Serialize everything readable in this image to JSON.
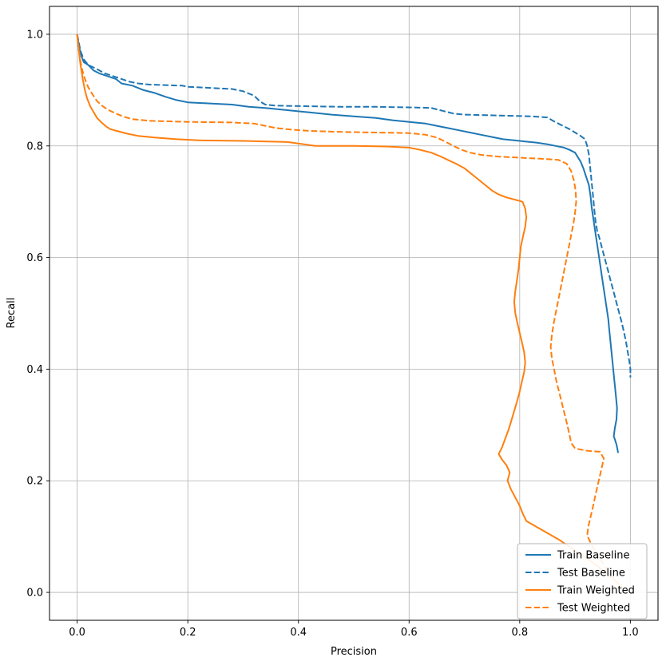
{
  "chart_data": {
    "type": "line",
    "title": "",
    "xlabel": "Precision",
    "ylabel": "Recall",
    "xlim": [
      -0.05,
      1.05
    ],
    "ylim": [
      -0.05,
      1.05
    ],
    "xticks": [
      0.0,
      0.2,
      0.4,
      0.6,
      0.8,
      1.0
    ],
    "yticks": [
      0.0,
      0.2,
      0.4,
      0.6,
      0.8,
      1.0
    ],
    "grid": true,
    "legend_position": "lower right",
    "colors": {
      "baseline": "#1f77b4",
      "weighted": "#ff7f0e"
    },
    "series": [
      {
        "name": "Train Baseline",
        "color": "#1f77b4",
        "dash": "solid",
        "points": [
          [
            0.0,
            1.0
          ],
          [
            0.004,
            0.975
          ],
          [
            0.008,
            0.96
          ],
          [
            0.012,
            0.95
          ],
          [
            0.02,
            0.945
          ],
          [
            0.03,
            0.935
          ],
          [
            0.04,
            0.93
          ],
          [
            0.055,
            0.925
          ],
          [
            0.07,
            0.92
          ],
          [
            0.08,
            0.912
          ],
          [
            0.1,
            0.908
          ],
          [
            0.12,
            0.9
          ],
          [
            0.14,
            0.895
          ],
          [
            0.16,
            0.888
          ],
          [
            0.18,
            0.882
          ],
          [
            0.2,
            0.878
          ],
          [
            0.24,
            0.876
          ],
          [
            0.28,
            0.874
          ],
          [
            0.31,
            0.87
          ],
          [
            0.34,
            0.868
          ],
          [
            0.38,
            0.864
          ],
          [
            0.42,
            0.86
          ],
          [
            0.46,
            0.856
          ],
          [
            0.5,
            0.853
          ],
          [
            0.54,
            0.85
          ],
          [
            0.57,
            0.846
          ],
          [
            0.6,
            0.843
          ],
          [
            0.63,
            0.84
          ],
          [
            0.65,
            0.836
          ],
          [
            0.67,
            0.832
          ],
          [
            0.69,
            0.828
          ],
          [
            0.71,
            0.824
          ],
          [
            0.73,
            0.82
          ],
          [
            0.75,
            0.816
          ],
          [
            0.77,
            0.812
          ],
          [
            0.79,
            0.81
          ],
          [
            0.81,
            0.808
          ],
          [
            0.83,
            0.806
          ],
          [
            0.85,
            0.803
          ],
          [
            0.865,
            0.8
          ],
          [
            0.88,
            0.797
          ],
          [
            0.89,
            0.793
          ],
          [
            0.9,
            0.788
          ],
          [
            0.905,
            0.78
          ],
          [
            0.91,
            0.772
          ],
          [
            0.915,
            0.76
          ],
          [
            0.92,
            0.745
          ],
          [
            0.925,
            0.73
          ],
          [
            0.928,
            0.71
          ],
          [
            0.93,
            0.69
          ],
          [
            0.933,
            0.67
          ],
          [
            0.936,
            0.65
          ],
          [
            0.939,
            0.63
          ],
          [
            0.942,
            0.61
          ],
          [
            0.945,
            0.59
          ],
          [
            0.948,
            0.57
          ],
          [
            0.951,
            0.55
          ],
          [
            0.954,
            0.53
          ],
          [
            0.957,
            0.51
          ],
          [
            0.96,
            0.49
          ],
          [
            0.962,
            0.47
          ],
          [
            0.964,
            0.45
          ],
          [
            0.966,
            0.43
          ],
          [
            0.968,
            0.41
          ],
          [
            0.97,
            0.39
          ],
          [
            0.972,
            0.37
          ],
          [
            0.974,
            0.35
          ],
          [
            0.976,
            0.33
          ],
          [
            0.975,
            0.31
          ],
          [
            0.972,
            0.295
          ],
          [
            0.97,
            0.28
          ],
          [
            0.975,
            0.265
          ],
          [
            0.978,
            0.25
          ]
        ]
      },
      {
        "name": "Test Baseline",
        "color": "#1f77b4",
        "dash": "dashed",
        "points": [
          [
            0.0,
            1.0
          ],
          [
            0.006,
            0.97
          ],
          [
            0.012,
            0.955
          ],
          [
            0.02,
            0.945
          ],
          [
            0.035,
            0.938
          ],
          [
            0.05,
            0.93
          ],
          [
            0.065,
            0.925
          ],
          [
            0.08,
            0.92
          ],
          [
            0.095,
            0.915
          ],
          [
            0.11,
            0.912
          ],
          [
            0.13,
            0.91
          ],
          [
            0.19,
            0.908
          ],
          [
            0.2,
            0.906
          ],
          [
            0.24,
            0.904
          ],
          [
            0.28,
            0.902
          ],
          [
            0.3,
            0.898
          ],
          [
            0.32,
            0.89
          ],
          [
            0.33,
            0.88
          ],
          [
            0.34,
            0.874
          ],
          [
            0.36,
            0.872
          ],
          [
            0.42,
            0.871
          ],
          [
            0.48,
            0.87
          ],
          [
            0.54,
            0.87
          ],
          [
            0.6,
            0.869
          ],
          [
            0.64,
            0.868
          ],
          [
            0.66,
            0.863
          ],
          [
            0.68,
            0.858
          ],
          [
            0.7,
            0.856
          ],
          [
            0.74,
            0.855
          ],
          [
            0.78,
            0.854
          ],
          [
            0.82,
            0.853
          ],
          [
            0.85,
            0.851
          ],
          [
            0.86,
            0.845
          ],
          [
            0.87,
            0.84
          ],
          [
            0.88,
            0.835
          ],
          [
            0.89,
            0.83
          ],
          [
            0.9,
            0.824
          ],
          [
            0.91,
            0.818
          ],
          [
            0.918,
            0.812
          ],
          [
            0.922,
            0.8
          ],
          [
            0.925,
            0.785
          ],
          [
            0.927,
            0.765
          ],
          [
            0.929,
            0.745
          ],
          [
            0.931,
            0.725
          ],
          [
            0.933,
            0.705
          ],
          [
            0.935,
            0.685
          ],
          [
            0.937,
            0.665
          ],
          [
            0.94,
            0.648
          ],
          [
            0.944,
            0.635
          ],
          [
            0.948,
            0.62
          ],
          [
            0.952,
            0.605
          ],
          [
            0.956,
            0.59
          ],
          [
            0.96,
            0.575
          ],
          [
            0.964,
            0.56
          ],
          [
            0.968,
            0.545
          ],
          [
            0.972,
            0.53
          ],
          [
            0.976,
            0.515
          ],
          [
            0.98,
            0.5
          ],
          [
            0.984,
            0.485
          ],
          [
            0.988,
            0.468
          ],
          [
            0.992,
            0.45
          ],
          [
            0.995,
            0.432
          ],
          [
            0.998,
            0.415
          ],
          [
            1.0,
            0.4
          ],
          [
            1.0,
            0.385
          ]
        ]
      },
      {
        "name": "Train Weighted",
        "color": "#ff7f0e",
        "dash": "solid",
        "points": [
          [
            0.0,
            1.0
          ],
          [
            0.003,
            0.97
          ],
          [
            0.006,
            0.945
          ],
          [
            0.01,
            0.92
          ],
          [
            0.014,
            0.9
          ],
          [
            0.018,
            0.885
          ],
          [
            0.024,
            0.87
          ],
          [
            0.03,
            0.86
          ],
          [
            0.036,
            0.85
          ],
          [
            0.044,
            0.842
          ],
          [
            0.052,
            0.835
          ],
          [
            0.06,
            0.83
          ],
          [
            0.075,
            0.826
          ],
          [
            0.09,
            0.822
          ],
          [
            0.11,
            0.818
          ],
          [
            0.14,
            0.815
          ],
          [
            0.18,
            0.812
          ],
          [
            0.22,
            0.81
          ],
          [
            0.3,
            0.809
          ],
          [
            0.38,
            0.807
          ],
          [
            0.41,
            0.803
          ],
          [
            0.43,
            0.8
          ],
          [
            0.5,
            0.8
          ],
          [
            0.56,
            0.799
          ],
          [
            0.6,
            0.797
          ],
          [
            0.62,
            0.793
          ],
          [
            0.64,
            0.788
          ],
          [
            0.655,
            0.782
          ],
          [
            0.67,
            0.775
          ],
          [
            0.685,
            0.768
          ],
          [
            0.7,
            0.76
          ],
          [
            0.71,
            0.752
          ],
          [
            0.72,
            0.744
          ],
          [
            0.73,
            0.736
          ],
          [
            0.74,
            0.728
          ],
          [
            0.75,
            0.72
          ],
          [
            0.76,
            0.714
          ],
          [
            0.775,
            0.708
          ],
          [
            0.79,
            0.704
          ],
          [
            0.805,
            0.7
          ],
          [
            0.81,
            0.688
          ],
          [
            0.812,
            0.672
          ],
          [
            0.81,
            0.655
          ],
          [
            0.806,
            0.638
          ],
          [
            0.802,
            0.62
          ],
          [
            0.8,
            0.6
          ],
          [
            0.798,
            0.58
          ],
          [
            0.795,
            0.56
          ],
          [
            0.792,
            0.54
          ],
          [
            0.79,
            0.52
          ],
          [
            0.792,
            0.5
          ],
          [
            0.796,
            0.482
          ],
          [
            0.8,
            0.465
          ],
          [
            0.804,
            0.448
          ],
          [
            0.808,
            0.43
          ],
          [
            0.81,
            0.412
          ],
          [
            0.808,
            0.395
          ],
          [
            0.804,
            0.378
          ],
          [
            0.8,
            0.36
          ],
          [
            0.795,
            0.342
          ],
          [
            0.79,
            0.325
          ],
          [
            0.785,
            0.308
          ],
          [
            0.78,
            0.292
          ],
          [
            0.774,
            0.276
          ],
          [
            0.768,
            0.26
          ],
          [
            0.762,
            0.248
          ],
          [
            0.768,
            0.238
          ],
          [
            0.776,
            0.228
          ],
          [
            0.782,
            0.215
          ],
          [
            0.778,
            0.2
          ],
          [
            0.784,
            0.185
          ],
          [
            0.792,
            0.17
          ],
          [
            0.8,
            0.155
          ],
          [
            0.806,
            0.14
          ],
          [
            0.812,
            0.128
          ],
          [
            0.84,
            0.112
          ],
          [
            0.87,
            0.095
          ],
          [
            0.9,
            0.075
          ],
          [
            0.93,
            0.055
          ],
          [
            0.96,
            0.032
          ],
          [
            0.985,
            0.01
          ]
        ]
      },
      {
        "name": "Test Weighted",
        "color": "#ff7f0e",
        "dash": "dashed",
        "points": [
          [
            0.0,
            1.0
          ],
          [
            0.004,
            0.965
          ],
          [
            0.008,
            0.94
          ],
          [
            0.014,
            0.92
          ],
          [
            0.02,
            0.905
          ],
          [
            0.028,
            0.892
          ],
          [
            0.036,
            0.88
          ],
          [
            0.045,
            0.872
          ],
          [
            0.055,
            0.865
          ],
          [
            0.07,
            0.858
          ],
          [
            0.085,
            0.852
          ],
          [
            0.1,
            0.848
          ],
          [
            0.13,
            0.845
          ],
          [
            0.2,
            0.843
          ],
          [
            0.28,
            0.842
          ],
          [
            0.32,
            0.84
          ],
          [
            0.34,
            0.836
          ],
          [
            0.36,
            0.832
          ],
          [
            0.39,
            0.829
          ],
          [
            0.42,
            0.827
          ],
          [
            0.48,
            0.825
          ],
          [
            0.54,
            0.824
          ],
          [
            0.6,
            0.823
          ],
          [
            0.63,
            0.82
          ],
          [
            0.65,
            0.815
          ],
          [
            0.665,
            0.808
          ],
          [
            0.68,
            0.8
          ],
          [
            0.695,
            0.793
          ],
          [
            0.71,
            0.788
          ],
          [
            0.73,
            0.784
          ],
          [
            0.76,
            0.781
          ],
          [
            0.8,
            0.779
          ],
          [
            0.84,
            0.777
          ],
          [
            0.87,
            0.775
          ],
          [
            0.885,
            0.768
          ],
          [
            0.893,
            0.755
          ],
          [
            0.898,
            0.738
          ],
          [
            0.901,
            0.72
          ],
          [
            0.902,
            0.7
          ],
          [
            0.9,
            0.68
          ],
          [
            0.897,
            0.66
          ],
          [
            0.893,
            0.64
          ],
          [
            0.889,
            0.62
          ],
          [
            0.885,
            0.6
          ],
          [
            0.881,
            0.58
          ],
          [
            0.877,
            0.56
          ],
          [
            0.873,
            0.54
          ],
          [
            0.869,
            0.52
          ],
          [
            0.865,
            0.5
          ],
          [
            0.861,
            0.48
          ],
          [
            0.858,
            0.46
          ],
          [
            0.856,
            0.44
          ],
          [
            0.858,
            0.42
          ],
          [
            0.862,
            0.4
          ],
          [
            0.866,
            0.38
          ],
          [
            0.871,
            0.36
          ],
          [
            0.876,
            0.34
          ],
          [
            0.881,
            0.32
          ],
          [
            0.886,
            0.3
          ],
          [
            0.89,
            0.282
          ],
          [
            0.893,
            0.268
          ],
          [
            0.9,
            0.258
          ],
          [
            0.92,
            0.254
          ],
          [
            0.945,
            0.252
          ],
          [
            0.952,
            0.24
          ],
          [
            0.948,
            0.222
          ],
          [
            0.944,
            0.205
          ],
          [
            0.94,
            0.188
          ],
          [
            0.936,
            0.17
          ],
          [
            0.932,
            0.152
          ],
          [
            0.928,
            0.135
          ],
          [
            0.924,
            0.118
          ],
          [
            0.922,
            0.102
          ],
          [
            0.93,
            0.085
          ],
          [
            0.942,
            0.065
          ],
          [
            0.955,
            0.045
          ],
          [
            0.968,
            0.025
          ]
        ]
      }
    ]
  }
}
